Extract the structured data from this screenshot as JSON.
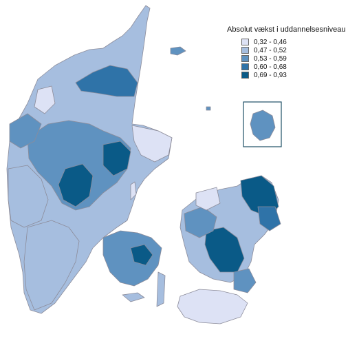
{
  "map": {
    "title": "",
    "legend": {
      "title": "Absolut vækst i uddannelsesniveau",
      "classes": [
        {
          "label": "0,32 - 0,46",
          "color": "#dde2f5"
        },
        {
          "label": "0,47 - 0,52",
          "color": "#a6bedf"
        },
        {
          "label": "0,53 - 0,59",
          "color": "#5f92c0"
        },
        {
          "label": "0,60 - 0,68",
          "color": "#2f73a8"
        },
        {
          "label": "0,69 - 0,93",
          "color": "#0a5a87"
        }
      ]
    },
    "inset": {
      "region": "Bornholm",
      "class": 2
    },
    "land_color": "#a6bedf"
  }
}
